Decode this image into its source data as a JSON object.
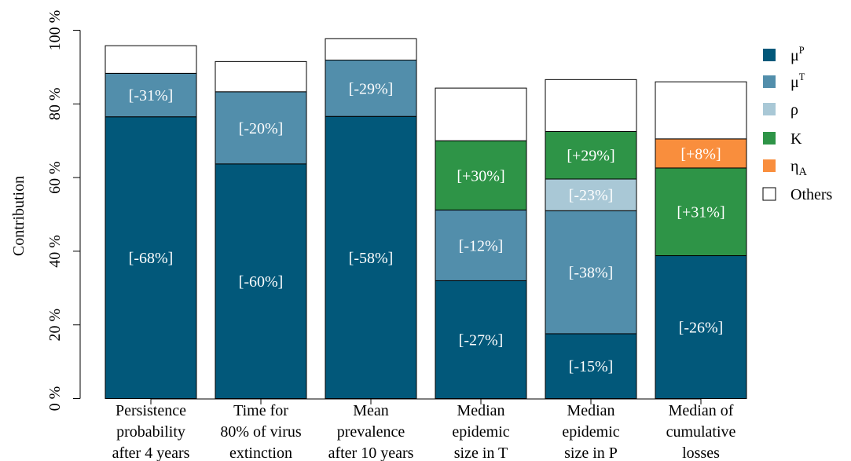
{
  "chart_data": {
    "type": "bar",
    "stacked": true,
    "ylabel": "Contribution",
    "xlabel": "",
    "ylim": [
      0,
      100
    ],
    "yticks": [
      0,
      20,
      40,
      60,
      80,
      100
    ],
    "ytick_labels": [
      "0 %",
      "20 %",
      "40 %",
      "60 %",
      "80 %",
      "100 %"
    ],
    "grid": false,
    "legend_position": "right",
    "categories": [
      [
        "Persistence",
        "probability",
        "after 4 years"
      ],
      [
        "Time for",
        "80% of virus",
        "extinction"
      ],
      [
        "Mean",
        "prevalence",
        "after 10 years"
      ],
      [
        "Median",
        "epidemic",
        "size in T"
      ],
      [
        "Median",
        "epidemic",
        "size in P"
      ],
      [
        "Median of",
        "cumulative",
        "losses"
      ]
    ],
    "series": [
      {
        "key": "muP",
        "name": "μ",
        "superscript": "P",
        "color": "#02587a",
        "values": [
          76.5,
          63.7,
          76.6,
          32.0,
          17.6,
          38.8
        ],
        "labels": [
          "[-68%]",
          "[-60%]",
          "[-58%]",
          "[-27%]",
          "[-15%]",
          "[-26%]"
        ]
      },
      {
        "key": "muT",
        "name": "μ",
        "superscript": "T",
        "color": "#528eab",
        "values": [
          11.8,
          19.6,
          15.3,
          19.2,
          33.4,
          0
        ],
        "labels": [
          "[-31%]",
          "[-20%]",
          "[-29%]",
          "[-12%]",
          "[-38%]",
          ""
        ]
      },
      {
        "key": "rho",
        "name": "ρ",
        "color": "#a9c8d6",
        "values": [
          0,
          0,
          0,
          0,
          8.6,
          0
        ],
        "labels": [
          "",
          "",
          "",
          "",
          "[-23%]",
          ""
        ]
      },
      {
        "key": "K",
        "name": "K",
        "color": "#2e9447",
        "values": [
          0,
          0,
          0,
          18.8,
          12.9,
          23.8
        ],
        "labels": [
          "",
          "",
          "",
          "[+30%]",
          "[+29%]",
          "[+31%]"
        ]
      },
      {
        "key": "etaA",
        "name": "η",
        "subscript": "A",
        "color": "#f98e3d",
        "values": [
          0,
          0,
          0,
          0,
          0,
          7.9
        ],
        "labels": [
          "",
          "",
          "",
          "",
          "",
          "[+8%]"
        ]
      },
      {
        "key": "others",
        "name": "Others",
        "color": "#ffffff",
        "values": [
          7.5,
          8.2,
          5.8,
          14.3,
          14.1,
          15.5
        ],
        "labels": [
          "",
          "",
          "",
          "",
          "",
          ""
        ]
      }
    ]
  }
}
